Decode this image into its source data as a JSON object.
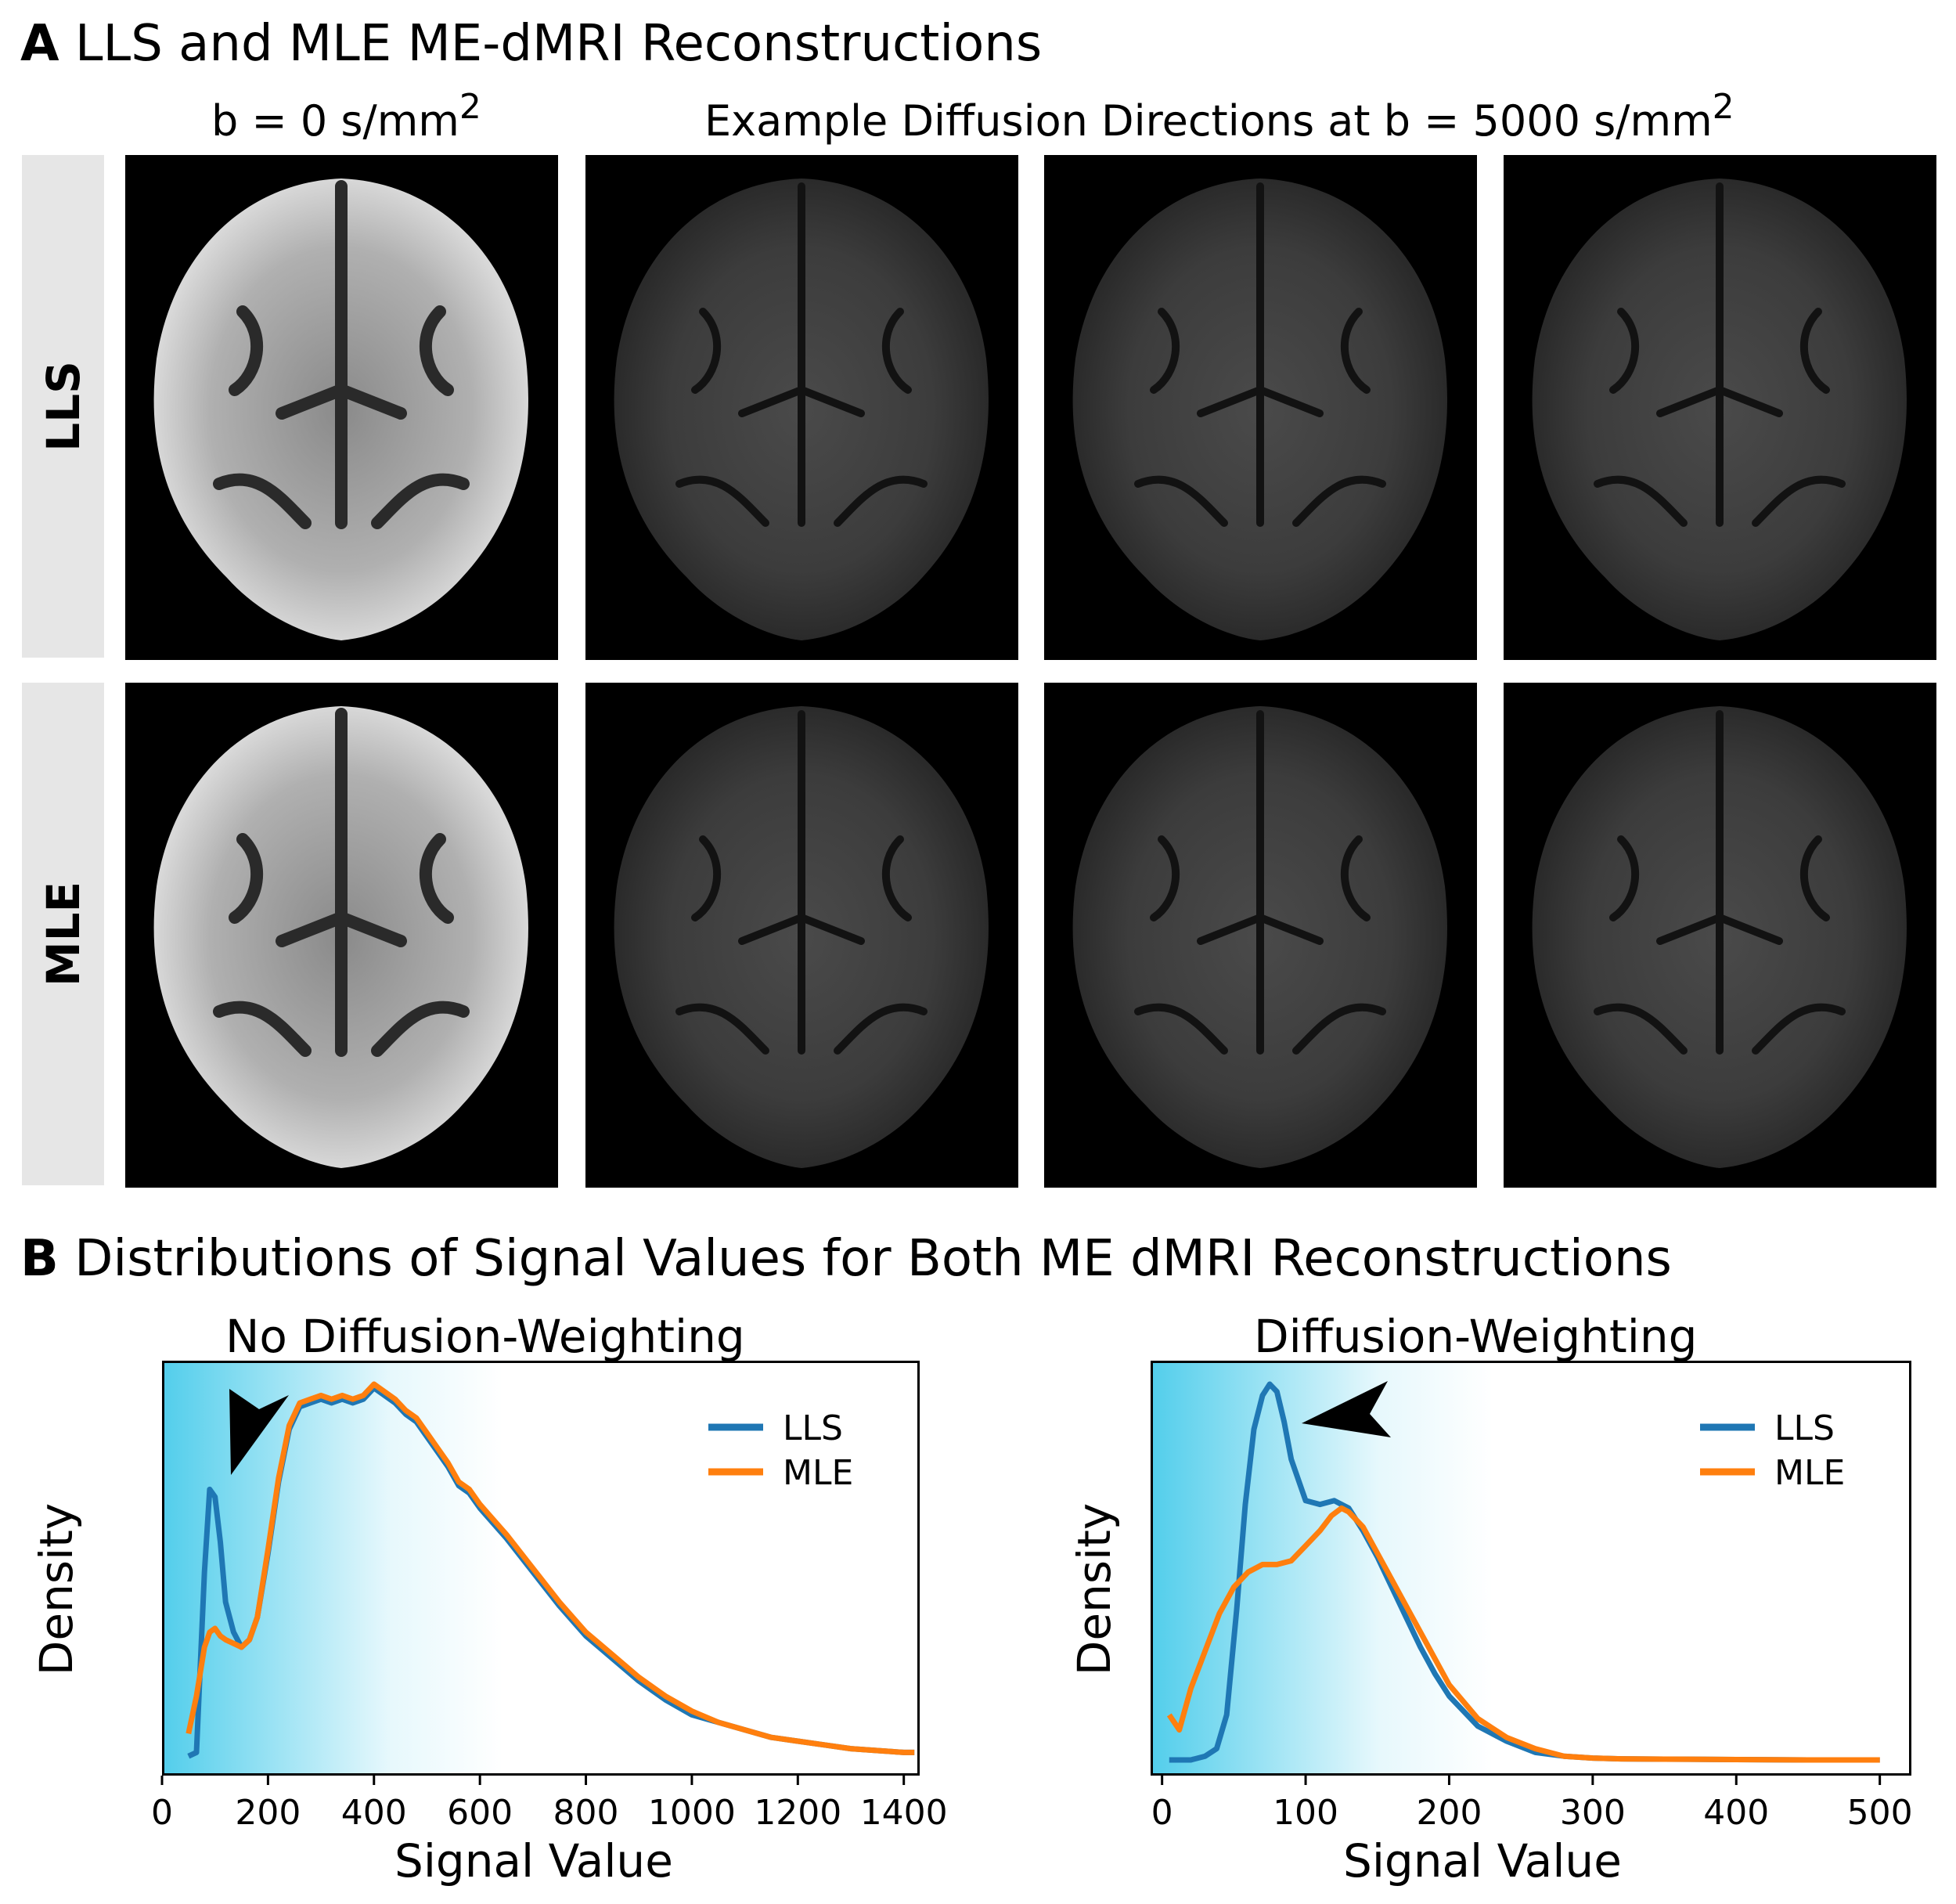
{
  "panel_a": {
    "letter": "A",
    "title": "LLS and MLE ME-dMRI Reconstructions",
    "col_b0": "b = 0 s/mm",
    "col_b0_sup": "2",
    "col_dw": "Example Diffusion Directions at b = 5000 s/mm",
    "col_dw_sup": "2",
    "row_labels": [
      "LLS",
      "MLE"
    ]
  },
  "panel_b": {
    "letter": "B",
    "title": "Distributions of Signal Values for Both ME dMRI Reconstructions"
  },
  "colors": {
    "lls": "#1f77b4",
    "mle": "#ff7f0e",
    "gradient": "#33c5e8"
  },
  "chart_data": [
    {
      "type": "line",
      "title": "No Diffusion-Weighting",
      "xlabel": "Signal Value",
      "ylabel": "Density",
      "xlim": [
        0,
        1430
      ],
      "ylim": [
        0,
        1.0
      ],
      "xticks": [
        "0",
        "200",
        "400",
        "600",
        "800",
        "1000",
        "1200",
        "1400"
      ],
      "legend": "upper-right",
      "annotation": "arrowhead pointing at the low-signal LLS peak",
      "series": [
        {
          "name": "LLS",
          "x": [
            50,
            65,
            80,
            90,
            100,
            110,
            120,
            135,
            150,
            165,
            180,
            200,
            220,
            240,
            260,
            280,
            300,
            320,
            340,
            360,
            380,
            400,
            420,
            440,
            460,
            480,
            500,
            520,
            540,
            560,
            580,
            600,
            650,
            700,
            750,
            800,
            850,
            900,
            950,
            1000,
            1050,
            1100,
            1150,
            1200,
            1250,
            1300,
            1350,
            1400,
            1420
          ],
          "y": [
            0.01,
            0.02,
            0.5,
            0.72,
            0.7,
            0.58,
            0.42,
            0.34,
            0.3,
            0.32,
            0.38,
            0.55,
            0.74,
            0.88,
            0.94,
            0.95,
            0.96,
            0.95,
            0.96,
            0.95,
            0.96,
            0.99,
            0.97,
            0.95,
            0.92,
            0.9,
            0.86,
            0.82,
            0.78,
            0.73,
            0.71,
            0.67,
            0.59,
            0.5,
            0.41,
            0.33,
            0.27,
            0.21,
            0.16,
            0.12,
            0.1,
            0.08,
            0.06,
            0.05,
            0.04,
            0.03,
            0.025,
            0.02,
            0.02
          ]
        },
        {
          "name": "MLE",
          "x": [
            50,
            65,
            80,
            90,
            100,
            110,
            120,
            135,
            150,
            165,
            180,
            200,
            220,
            240,
            260,
            280,
            300,
            320,
            340,
            360,
            380,
            400,
            420,
            440,
            460,
            480,
            500,
            520,
            540,
            560,
            580,
            600,
            650,
            700,
            750,
            800,
            850,
            900,
            950,
            1000,
            1050,
            1100,
            1150,
            1200,
            1250,
            1300,
            1350,
            1400,
            1420
          ],
          "y": [
            0.07,
            0.17,
            0.3,
            0.34,
            0.35,
            0.33,
            0.32,
            0.31,
            0.3,
            0.32,
            0.38,
            0.56,
            0.75,
            0.89,
            0.95,
            0.96,
            0.97,
            0.96,
            0.97,
            0.96,
            0.97,
            1.0,
            0.98,
            0.96,
            0.93,
            0.91,
            0.87,
            0.83,
            0.79,
            0.74,
            0.72,
            0.68,
            0.6,
            0.51,
            0.42,
            0.34,
            0.28,
            0.22,
            0.17,
            0.13,
            0.1,
            0.08,
            0.06,
            0.05,
            0.04,
            0.03,
            0.025,
            0.02,
            0.02
          ]
        }
      ]
    },
    {
      "type": "line",
      "title": "Diffusion-Weighting",
      "xlabel": "Signal Value",
      "ylabel": "Density",
      "xlim": [
        -8,
        522
      ],
      "ylim": [
        0,
        1.0
      ],
      "xticks": [
        "0",
        "100",
        "200",
        "300",
        "400",
        "500"
      ],
      "legend": "upper-right",
      "annotation": "arrowhead pointing at the low-signal LLS peak",
      "series": [
        {
          "name": "LLS",
          "x": [
            5,
            20,
            30,
            38,
            45,
            52,
            58,
            64,
            70,
            75,
            80,
            85,
            90,
            100,
            110,
            120,
            130,
            140,
            150,
            160,
            170,
            180,
            190,
            200,
            220,
            240,
            260,
            280,
            300,
            320,
            350,
            400,
            450,
            500
          ],
          "y": [
            0.0,
            0.0,
            0.01,
            0.03,
            0.12,
            0.4,
            0.68,
            0.88,
            0.97,
            1.0,
            0.98,
            0.9,
            0.8,
            0.69,
            0.68,
            0.69,
            0.67,
            0.61,
            0.54,
            0.46,
            0.38,
            0.3,
            0.23,
            0.17,
            0.09,
            0.05,
            0.02,
            0.01,
            0.005,
            0.003,
            0.002,
            0.001,
            0.0,
            0.0
          ]
        },
        {
          "name": "MLE",
          "x": [
            5,
            12,
            20,
            30,
            40,
            50,
            60,
            70,
            80,
            90,
            100,
            110,
            118,
            125,
            130,
            140,
            150,
            160,
            170,
            180,
            190,
            200,
            220,
            240,
            260,
            280,
            300,
            320,
            350,
            400,
            450,
            500
          ],
          "y": [
            0.12,
            0.08,
            0.19,
            0.29,
            0.39,
            0.46,
            0.5,
            0.52,
            0.52,
            0.53,
            0.57,
            0.61,
            0.65,
            0.67,
            0.66,
            0.62,
            0.55,
            0.48,
            0.41,
            0.34,
            0.27,
            0.2,
            0.11,
            0.06,
            0.03,
            0.01,
            0.005,
            0.003,
            0.002,
            0.001,
            0.0,
            0.0
          ]
        }
      ]
    }
  ]
}
